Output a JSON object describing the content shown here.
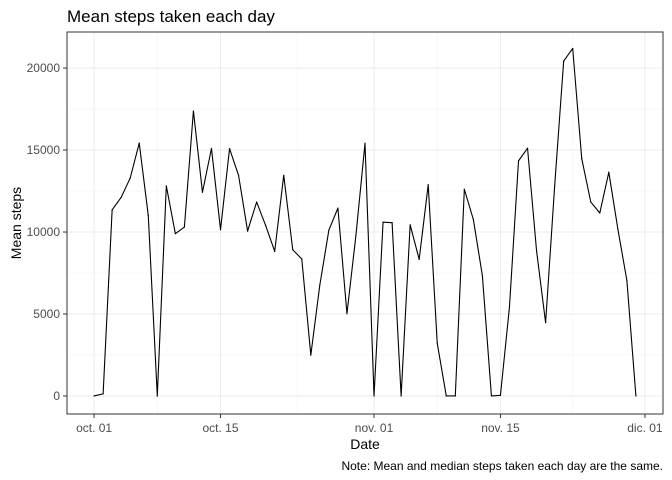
{
  "chart_data": {
    "type": "line",
    "title": "Mean steps taken each day",
    "xlabel": "Date",
    "ylabel": "Mean steps",
    "caption": "Note: Mean and median steps taken each day are the same.",
    "xlim": [
      "2012-09-28",
      "2012-12-03"
    ],
    "ylim": [
      -1100,
      22200
    ],
    "grid": true,
    "x_ticks": [
      {
        "date": "2012-10-01",
        "label": "oct. 01"
      },
      {
        "date": "2012-10-15",
        "label": "oct. 15"
      },
      {
        "date": "2012-11-01",
        "label": "nov. 01"
      },
      {
        "date": "2012-11-15",
        "label": "nov. 15"
      },
      {
        "date": "2012-12-01",
        "label": "dic. 01"
      }
    ],
    "y_ticks": [
      0,
      5000,
      10000,
      15000,
      20000
    ],
    "y_tick_labels": [
      "0",
      "5000",
      "10000",
      "15000",
      "20000"
    ],
    "line_color": "#000000",
    "series": [
      {
        "x": [
          "2012-10-01",
          "2012-10-02",
          "2012-10-03",
          "2012-10-04",
          "2012-10-05",
          "2012-10-06",
          "2012-10-07",
          "2012-10-08",
          "2012-10-09",
          "2012-10-10",
          "2012-10-11",
          "2012-10-12",
          "2012-10-13",
          "2012-10-14",
          "2012-10-15",
          "2012-10-16",
          "2012-10-17",
          "2012-10-18",
          "2012-10-19",
          "2012-10-20",
          "2012-10-21",
          "2012-10-22",
          "2012-10-23",
          "2012-10-24",
          "2012-10-25",
          "2012-10-26",
          "2012-10-27",
          "2012-10-28",
          "2012-10-29",
          "2012-10-30",
          "2012-10-31",
          "2012-11-01",
          "2012-11-02",
          "2012-11-03",
          "2012-11-04",
          "2012-11-05",
          "2012-11-06",
          "2012-11-07",
          "2012-11-08",
          "2012-11-09",
          "2012-11-10",
          "2012-11-11",
          "2012-11-12",
          "2012-11-13",
          "2012-11-14",
          "2012-11-15",
          "2012-11-16",
          "2012-11-17",
          "2012-11-18",
          "2012-11-19",
          "2012-11-20",
          "2012-11-21",
          "2012-11-22",
          "2012-11-23",
          "2012-11-24",
          "2012-11-25",
          "2012-11-26",
          "2012-11-27",
          "2012-11-28",
          "2012-11-29",
          "2012-11-30"
        ],
        "values": [
          0,
          126,
          11352,
          12116,
          13294,
          15420,
          11015,
          0,
          12811,
          9900,
          10304,
          17382,
          12426,
          15098,
          10139,
          15084,
          13452,
          10056,
          11829,
          10395,
          8821,
          13460,
          8918,
          8355,
          2492,
          6778,
          10119,
          11458,
          5018,
          9819,
          15414,
          0,
          10600,
          10571,
          0,
          10439,
          8334,
          12883,
          3219,
          0,
          0,
          12608,
          10765,
          7336,
          0,
          41,
          5441,
          14339,
          15110,
          8841,
          4472,
          12787,
          20427,
          21194,
          14478,
          11834,
          11162,
          13646,
          10183,
          7047,
          0
        ]
      }
    ]
  }
}
